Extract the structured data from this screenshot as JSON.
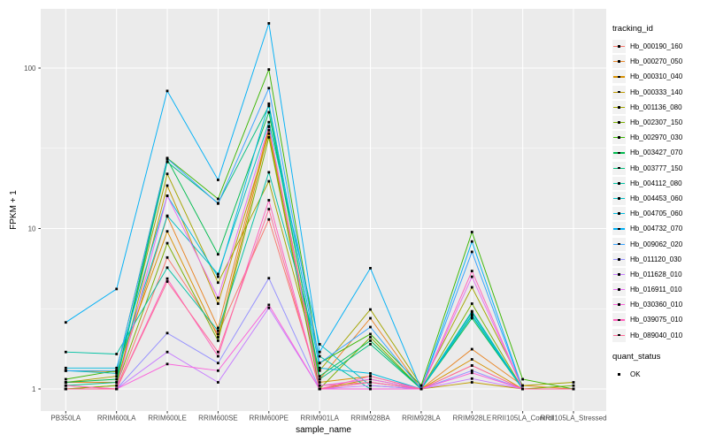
{
  "chart_data": {
    "type": "line",
    "title": "",
    "xlabel": "sample_name",
    "ylabel": "FPKM + 1",
    "x_categories": [
      "PB350LA",
      "RRIM600LA",
      "RRIM600LE",
      "RRIM600SE",
      "RRIM600PE",
      "RRIM901LA",
      "RRIM928BA",
      "RRIM928LA",
      "RRIM928LE",
      "RRII105LA_Control",
      "RRII105LA_Stressed"
    ],
    "y_axis": {
      "scale": "log10",
      "tick_labels": [
        "1",
        "10",
        "100"
      ],
      "tick_values": [
        1,
        10,
        100
      ],
      "minor_tick_values": [
        3.162,
        31.62
      ],
      "range": [
        0.77,
        248
      ],
      "grid": true
    },
    "point_shape": "black-square",
    "panel_bg": "#EBEBEB",
    "grid_color": "#FFFFFF",
    "tick_text_color": "#4D4D4D",
    "legend": {
      "line_title": "tracking_id",
      "point_title": "quant_status",
      "point_items": [
        {
          "label": "OK",
          "color": "#000000"
        }
      ]
    },
    "series": [
      {
        "name": "Hb_000190_160",
        "color": "#F8766D",
        "values": [
          1.05,
          1.0,
          6.6,
          2.2,
          11.4,
          1.05,
          1.1,
          1.0,
          1.4,
          1.0,
          1.0
        ]
      },
      {
        "name": "Hb_000270_050",
        "color": "#E88526",
        "values": [
          1.1,
          1.1,
          11.9,
          2.4,
          43.0,
          1.15,
          2.76,
          1.0,
          1.77,
          1.05,
          1.0
        ]
      },
      {
        "name": "Hb_000310_040",
        "color": "#D89000",
        "values": [
          1.3,
          1.28,
          9.6,
          2.1,
          41.0,
          1.1,
          1.2,
          1.0,
          1.53,
          1.0,
          1.0
        ]
      },
      {
        "name": "Hb_000333_140",
        "color": "#C09B00",
        "values": [
          1.0,
          1.05,
          18.5,
          3.4,
          39.0,
          1.0,
          1.15,
          1.0,
          1.1,
          1.0,
          1.0
        ]
      },
      {
        "name": "Hb_001136_080",
        "color": "#A3A500",
        "values": [
          1.1,
          1.2,
          21.9,
          4.6,
          19.7,
          1.3,
          3.13,
          1.05,
          4.3,
          1.05,
          1.1
        ]
      },
      {
        "name": "Hb_002307_150",
        "color": "#7CAE00",
        "values": [
          1.0,
          1.05,
          8.1,
          2.0,
          37.0,
          1.0,
          2.1,
          1.0,
          3.4,
          1.0,
          1.05
        ]
      },
      {
        "name": "Hb_002970_030",
        "color": "#39B600",
        "values": [
          1.15,
          1.3,
          27.5,
          15.3,
          98.0,
          1.45,
          2.2,
          1.05,
          9.5,
          1.15,
          1.0
        ]
      },
      {
        "name": "Hb_003427_070",
        "color": "#00BB4E",
        "values": [
          1.1,
          1.15,
          27.0,
          6.9,
          53.0,
          1.2,
          2.0,
          1.0,
          2.76,
          1.0,
          1.0
        ]
      },
      {
        "name": "Hb_003777_150",
        "color": "#00BF7D",
        "values": [
          1.05,
          1.1,
          26.0,
          14.4,
          58.0,
          1.15,
          1.9,
          1.0,
          3.0,
          1.0,
          1.0
        ]
      },
      {
        "name": "Hb_004112_080",
        "color": "#00C1A3",
        "values": [
          1.7,
          1.65,
          5.7,
          2.3,
          22.4,
          1.6,
          1.0,
          1.0,
          2.85,
          1.0,
          1.0
        ]
      },
      {
        "name": "Hb_004453_060",
        "color": "#00BFC4",
        "values": [
          1.3,
          1.25,
          12.0,
          5.2,
          46.0,
          1.9,
          1.05,
          1.0,
          3.05,
          1.0,
          1.0
        ]
      },
      {
        "name": "Hb_004705_060",
        "color": "#00BAE0",
        "values": [
          1.35,
          1.35,
          16.0,
          5.0,
          60.0,
          1.35,
          1.25,
          1.0,
          2.9,
          1.0,
          1.0
        ]
      },
      {
        "name": "Hb_004732_070",
        "color": "#00B0F6",
        "values": [
          2.6,
          4.2,
          72.0,
          20.1,
          190.0,
          1.7,
          5.66,
          1.0,
          8.3,
          1.0,
          1.0
        ]
      },
      {
        "name": "Hb_009062_020",
        "color": "#35A2FF",
        "values": [
          1.3,
          1.3,
          27.3,
          14.3,
          75.0,
          1.45,
          2.43,
          1.0,
          7.15,
          1.0,
          1.0
        ]
      },
      {
        "name": "Hb_011120_030",
        "color": "#9590FF",
        "values": [
          1.0,
          1.0,
          2.23,
          1.45,
          4.9,
          1.0,
          1.1,
          1.0,
          1.3,
          1.0,
          1.0
        ]
      },
      {
        "name": "Hb_011628_010",
        "color": "#C77CFF",
        "values": [
          1.0,
          1.0,
          1.7,
          1.1,
          3.2,
          1.0,
          1.05,
          1.0,
          1.16,
          1.0,
          1.0
        ]
      },
      {
        "name": "Hb_016911_010",
        "color": "#E76BF3",
        "values": [
          1.0,
          1.0,
          16.0,
          3.7,
          43.4,
          1.05,
          1.15,
          1.0,
          5.0,
          1.0,
          1.0
        ]
      },
      {
        "name": "Hb_030360_010",
        "color": "#FA62DB",
        "values": [
          1.0,
          1.0,
          1.43,
          1.3,
          3.34,
          1.0,
          1.0,
          1.0,
          1.26,
          1.0,
          1.0
        ]
      },
      {
        "name": "Hb_039075_010",
        "color": "#FF62BC",
        "values": [
          1.05,
          1.0,
          4.87,
          1.6,
          15.0,
          1.0,
          1.2,
          1.0,
          5.43,
          1.0,
          1.0
        ]
      },
      {
        "name": "Hb_089040_010",
        "color": "#FF6A98",
        "values": [
          1.0,
          1.0,
          4.67,
          1.7,
          13.2,
          1.0,
          1.1,
          1.0,
          1.4,
          1.0,
          1.0
        ]
      }
    ]
  }
}
